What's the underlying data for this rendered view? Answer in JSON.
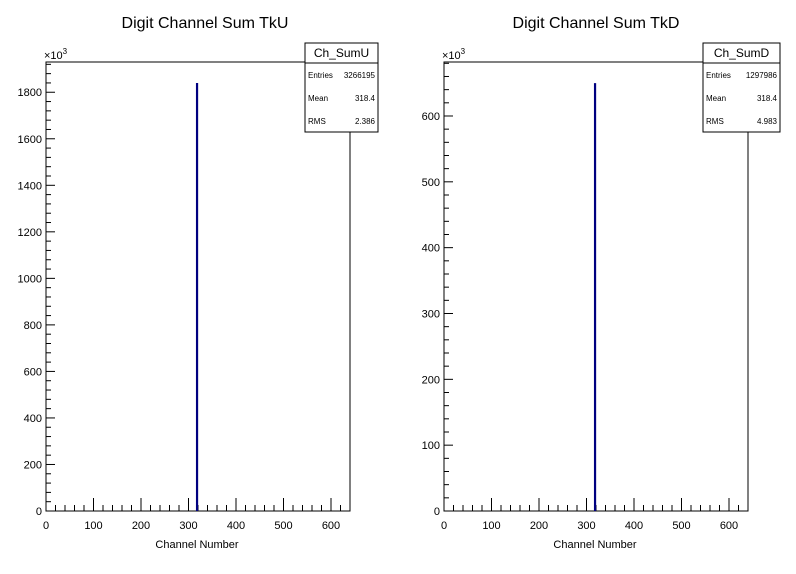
{
  "chart_data": [
    {
      "type": "histogram",
      "title": "Digit Channel Sum TkU",
      "xlabel": "Channel Number",
      "ylabel": "",
      "y_multiplier_label": "×10",
      "y_multiplier_exp": "3",
      "xlim": [
        0,
        640
      ],
      "ylim": [
        0,
        1930
      ],
      "x_ticks": [
        0,
        100,
        200,
        300,
        400,
        500,
        600
      ],
      "x_tick_labels": [
        "0",
        "100",
        "200",
        "300",
        "400",
        "500",
        "600"
      ],
      "y_ticks": [
        0,
        200,
        400,
        600,
        800,
        1000,
        1200,
        1400,
        1600,
        1800
      ],
      "y_tick_labels": [
        "0",
        "200",
        "400",
        "600",
        "800",
        "1000",
        "1200",
        "1400",
        "1600",
        "1800"
      ],
      "bins": [
        {
          "x": 318,
          "value": 1840
        }
      ],
      "line_color": "#000080",
      "stats": {
        "name": "Ch_SumU",
        "rows": [
          {
            "label": "Entries",
            "value": "3266195"
          },
          {
            "label": "Mean",
            "value": "318.4"
          },
          {
            "label": "RMS",
            "value": "2.386"
          }
        ]
      }
    },
    {
      "type": "histogram",
      "title": "Digit Channel Sum TkD",
      "xlabel": "Channel Number",
      "ylabel": "",
      "y_multiplier_label": "×10",
      "y_multiplier_exp": "3",
      "xlim": [
        0,
        640
      ],
      "ylim": [
        0,
        682
      ],
      "x_ticks": [
        0,
        100,
        200,
        300,
        400,
        500,
        600
      ],
      "x_tick_labels": [
        "0",
        "100",
        "200",
        "300",
        "400",
        "500",
        "600"
      ],
      "y_ticks": [
        0,
        100,
        200,
        300,
        400,
        500,
        600
      ],
      "y_tick_labels": [
        "0",
        "100",
        "200",
        "300",
        "400",
        "500",
        "600"
      ],
      "bins": [
        {
          "x": 318,
          "value": 650
        }
      ],
      "line_color": "#000080",
      "stats": {
        "name": "Ch_SumD",
        "rows": [
          {
            "label": "Entries",
            "value": "1297986"
          },
          {
            "label": "Mean",
            "value": "318.4"
          },
          {
            "label": "RMS",
            "value": "4.983"
          }
        ]
      }
    }
  ]
}
